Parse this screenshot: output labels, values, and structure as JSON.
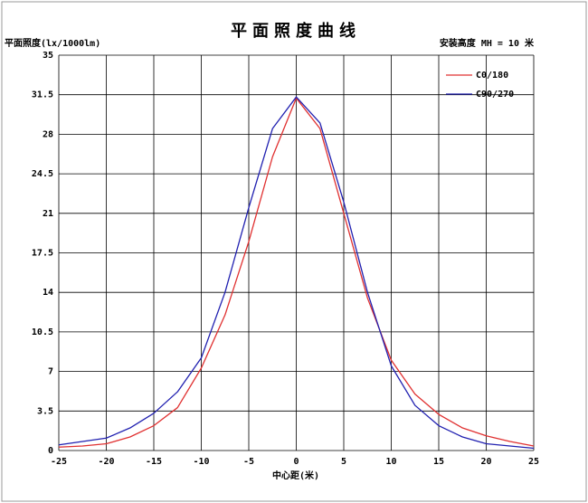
{
  "chart_data": {
    "type": "line",
    "title": "平面照度曲线",
    "y_label": "平面照度(lx/1000lm)",
    "note": "安装高度 MH = 10 米",
    "x_label": "中心距(米)",
    "x": [
      -25,
      -22.5,
      -20,
      -17.5,
      -15,
      -12.5,
      -10,
      -7.5,
      -5,
      -2.5,
      0,
      2.5,
      5,
      7.5,
      10,
      12.5,
      15,
      17.5,
      20,
      22.5,
      25
    ],
    "series": [
      {
        "name": "C0/180",
        "color": "#e03030",
        "values": [
          0.3,
          0.4,
          0.6,
          1.2,
          2.2,
          3.8,
          7.3,
          12.0,
          18.5,
          26.0,
          31.2,
          28.5,
          21.0,
          13.5,
          8.0,
          5.0,
          3.2,
          2.0,
          1.3,
          0.8,
          0.4
        ]
      },
      {
        "name": "C90/270",
        "color": "#2020b0",
        "values": [
          0.5,
          0.8,
          1.1,
          2.0,
          3.3,
          5.2,
          8.2,
          14.0,
          21.5,
          28.5,
          31.3,
          29.0,
          22.0,
          14.0,
          7.5,
          4.0,
          2.2,
          1.2,
          0.6,
          0.4,
          0.2
        ]
      }
    ],
    "xlim": [
      -25,
      25
    ],
    "ylim": [
      0,
      35
    ],
    "xticks": [
      -25,
      -20,
      -15,
      -10,
      -5,
      0,
      5,
      10,
      15,
      20,
      25
    ],
    "yticks": [
      0,
      3.5,
      7,
      10.5,
      14,
      17.5,
      21,
      24.5,
      28,
      31.5,
      35
    ],
    "grid": true
  }
}
